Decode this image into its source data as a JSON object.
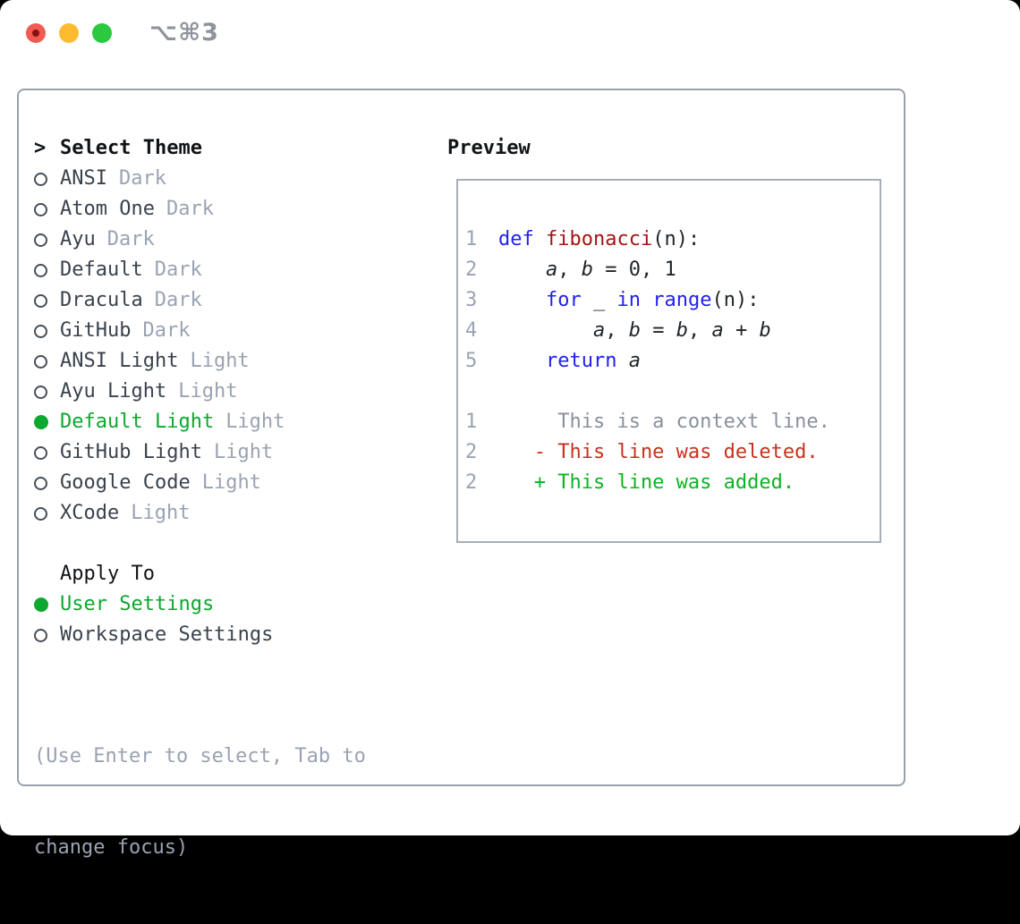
{
  "titlebar": {
    "title": "⌥⌘3",
    "buttons": [
      "close",
      "minimize",
      "zoom"
    ]
  },
  "theme_list": {
    "header_marker": ">",
    "header": "Select Theme",
    "items": [
      {
        "name": "ANSI",
        "variant": "Dark",
        "selected": false
      },
      {
        "name": "Atom One",
        "variant": "Dark",
        "selected": false
      },
      {
        "name": "Ayu",
        "variant": "Dark",
        "selected": false
      },
      {
        "name": "Default",
        "variant": "Dark",
        "selected": false
      },
      {
        "name": "Dracula",
        "variant": "Dark",
        "selected": false
      },
      {
        "name": "GitHub",
        "variant": "Dark",
        "selected": false
      },
      {
        "name": "ANSI Light",
        "variant": "Light",
        "selected": false
      },
      {
        "name": "Ayu Light",
        "variant": "Light",
        "selected": false
      },
      {
        "name": "Default Light",
        "variant": "Light",
        "selected": true
      },
      {
        "name": "GitHub Light",
        "variant": "Light",
        "selected": false
      },
      {
        "name": "Google Code",
        "variant": "Light",
        "selected": false
      },
      {
        "name": "XCode",
        "variant": "Light",
        "selected": false
      }
    ]
  },
  "apply_to": {
    "header": "Apply To",
    "options": [
      {
        "label": "User Settings",
        "selected": true
      },
      {
        "label": "Workspace Settings",
        "selected": false
      }
    ]
  },
  "hint": {
    "lines": [
      "(Use Enter to select, Tab to",
      "change focus)"
    ]
  },
  "preview": {
    "header": "Preview",
    "lines": [
      {
        "num": "1",
        "tokens": [
          [
            "def",
            "kw"
          ],
          [
            " ",
            "pl"
          ],
          [
            "fibonacci",
            "fn"
          ],
          [
            "(n):",
            "pl"
          ]
        ]
      },
      {
        "num": "2",
        "tokens": [
          [
            "    ",
            "pl"
          ],
          [
            "a",
            "it"
          ],
          [
            ", ",
            "pl"
          ],
          [
            "b",
            "it"
          ],
          [
            " = 0, 1",
            "pl"
          ]
        ]
      },
      {
        "num": "3",
        "tokens": [
          [
            "    ",
            "pl"
          ],
          [
            "for",
            "kw"
          ],
          [
            " _ ",
            "pl"
          ],
          [
            "in",
            "kw"
          ],
          [
            " ",
            "pl"
          ],
          [
            "range",
            "kw"
          ],
          [
            "(n):",
            "pl"
          ]
        ]
      },
      {
        "num": "4",
        "tokens": [
          [
            "        ",
            "pl"
          ],
          [
            "a",
            "it"
          ],
          [
            ", ",
            "pl"
          ],
          [
            "b",
            "it"
          ],
          [
            " = ",
            "pl"
          ],
          [
            "b",
            "it"
          ],
          [
            ", ",
            "pl"
          ],
          [
            "a",
            "it"
          ],
          [
            " + ",
            "pl"
          ],
          [
            "b",
            "it"
          ]
        ]
      },
      {
        "num": "5",
        "tokens": [
          [
            "    ",
            "pl"
          ],
          [
            "return",
            "kw"
          ],
          [
            " ",
            "pl"
          ],
          [
            "a",
            "it"
          ]
        ]
      },
      {
        "num": "",
        "tokens": []
      },
      {
        "num": "1",
        "tokens": [
          [
            "     This is a context line.",
            "ctx"
          ]
        ]
      },
      {
        "num": "2",
        "tokens": [
          [
            "   - This line was deleted.",
            "del"
          ]
        ]
      },
      {
        "num": "2",
        "tokens": [
          [
            "   + This line was added.",
            "add"
          ]
        ]
      }
    ]
  },
  "colors": {
    "green": "#0ca82f",
    "added-green": "#0bb421",
    "deleted-red": "#c5321f",
    "keyword-blue": "#2121ee",
    "function-red": "#a31515",
    "muted-gray": "#9aa3b2",
    "text-dark": "#111417",
    "item-gray": "#3a424d",
    "border-gray": "#99a1ad",
    "traffic-red": "#f15b51",
    "traffic-yellow": "#fdbc2f",
    "traffic-green": "#2bc93f",
    "title-gray": "#8e939c"
  }
}
